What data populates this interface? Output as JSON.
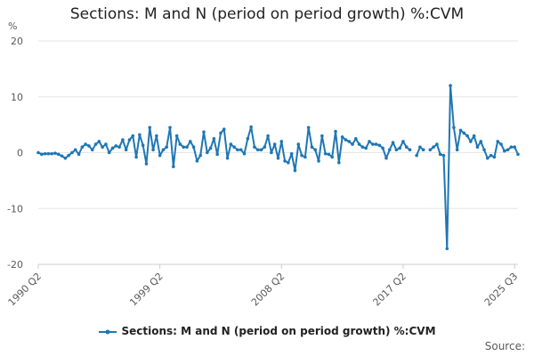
{
  "chart_data": {
    "type": "line",
    "title": "Sections: M and N (period on period growth) %:CVM",
    "ylabel": "%",
    "xlabel": "",
    "ylim": [
      -20,
      20
    ],
    "y_ticks": [
      20,
      10,
      0,
      -10,
      -20
    ],
    "x_tick_labels": [
      "1990 Q2",
      "1999 Q2",
      "2008 Q2",
      "2017 Q2",
      "2025 Q3"
    ],
    "x_tick_indices": [
      0,
      36,
      72,
      108,
      141
    ],
    "series": [
      {
        "name": "Sections: M and N (period on period growth) %:CVM",
        "color": "#1f77b4",
        "values": [
          0,
          -0.3,
          -0.2,
          -0.2,
          -0.2,
          -0.1,
          -0.3,
          -0.6,
          -1.0,
          -0.5,
          0.0,
          0.5,
          -0.3,
          1.0,
          1.5,
          1.2,
          0.5,
          1.5,
          2.0,
          1.0,
          1.5,
          0.0,
          0.8,
          1.2,
          1.0,
          2.3,
          0.5,
          2.3,
          3.0,
          -0.8,
          3.2,
          1.3,
          -2.0,
          4.5,
          0.5,
          3.0,
          -0.5,
          0.5,
          1.0,
          4.5,
          -2.5,
          3.0,
          1.5,
          1.0,
          1.0,
          2.0,
          1.0,
          -1.5,
          -0.5,
          3.7,
          0.0,
          0.8,
          2.5,
          -0.3,
          3.5,
          4.2,
          -1.0,
          1.5,
          1.0,
          0.5,
          0.5,
          -0.2,
          2.5,
          4.6,
          1.0,
          0.5,
          0.5,
          1.0,
          3.0,
          0.0,
          1.5,
          -1.0,
          2.0,
          -1.5,
          -1.8,
          -0.2,
          -3.2,
          1.5,
          -0.5,
          -0.8,
          4.5,
          1.0,
          0.5,
          -1.5,
          3.0,
          -0.2,
          -0.3,
          -0.8,
          3.8,
          -1.8,
          2.8,
          2.3,
          2.0,
          1.5,
          2.5,
          1.5,
          1.0,
          0.8,
          2.0,
          1.5,
          1.5,
          1.3,
          0.8,
          -1.0,
          0.5,
          1.8,
          0.5,
          0.8,
          2.0,
          1.0,
          0.5,
          null,
          -0.5,
          1.0,
          0.5,
          null,
          0.5,
          1.0,
          1.5,
          -0.3,
          -0.5,
          -17.2,
          12.0,
          4.5,
          0.5,
          4.0,
          3.5,
          3.0,
          2.0,
          3.0,
          1.0,
          2.0,
          0.5,
          -1.0,
          -0.5,
          -0.8,
          2.0,
          1.5,
          0.3,
          0.5,
          1.0,
          1.0,
          -0.3
        ]
      }
    ],
    "legend_position": "bottom",
    "source_label": "Source:"
  }
}
